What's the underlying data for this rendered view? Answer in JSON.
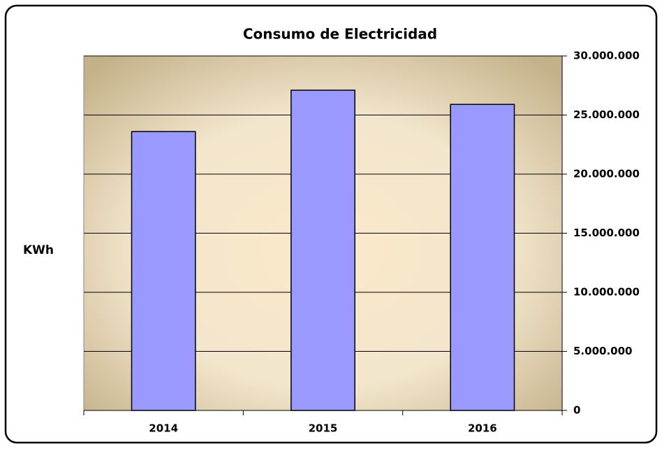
{
  "chart_data": {
    "type": "bar",
    "title": "Consumo de Electricidad",
    "y_label": "KWh",
    "categories": [
      "2014",
      "2015",
      "2016"
    ],
    "values": [
      23600000,
      27100000,
      25900000
    ],
    "color": "#9999ff",
    "ylim": [
      0,
      30000000
    ],
    "yticks": [
      0,
      {
        "value": 5000000,
        "label": "5.000.000"
      },
      {
        "value": 10000000,
        "label": "10.000.000"
      },
      {
        "value": 15000000,
        "label": "15.000.000"
      },
      {
        "value": 20000000,
        "label": "20.000.000"
      },
      {
        "value": 25000000,
        "label": "25.000.000"
      },
      {
        "value": 30000000,
        "label": "30.000.000"
      }
    ],
    "grid": true,
    "y_axis_side": "right"
  }
}
